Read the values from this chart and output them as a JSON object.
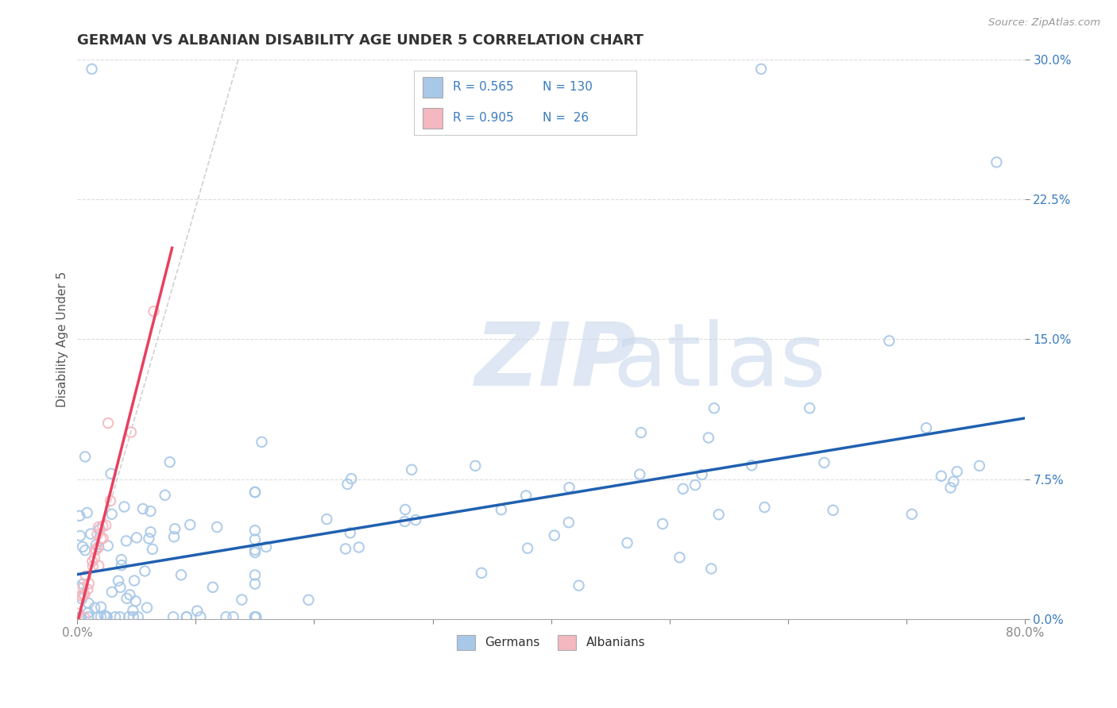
{
  "title": "GERMAN VS ALBANIAN DISABILITY AGE UNDER 5 CORRELATION CHART",
  "source": "Source: ZipAtlas.com",
  "xlabel": "",
  "ylabel": "Disability Age Under 5",
  "xlim": [
    0.0,
    0.8
  ],
  "ylim": [
    0.0,
    0.3
  ],
  "xticks": [
    0.0,
    0.1,
    0.2,
    0.3,
    0.4,
    0.5,
    0.6,
    0.7,
    0.8
  ],
  "xticklabels": [
    "0.0%",
    "",
    "",
    "",
    "",
    "",
    "",
    "",
    "80.0%"
  ],
  "yticks": [
    0.0,
    0.075,
    0.15,
    0.225,
    0.3
  ],
  "yticklabels_right": [
    "0.0%",
    "7.5%",
    "15.0%",
    "22.5%",
    "30.0%"
  ],
  "german_color": "#a8c8e8",
  "albanian_color": "#f4b8c0",
  "german_edge_color": "#7bafd4",
  "albanian_edge_color": "#e8909a",
  "german_line_color": "#2060b0",
  "albanian_line_color": "#e84060",
  "ref_line_color": "#cccccc",
  "watermark_color": "#c8d8ec",
  "title_color": "#333333",
  "tick_color": "#888888",
  "grid_color": "#dddddd",
  "background_color": "#ffffff",
  "legend_text_color": "#3a7bbf",
  "legend_label_color": "#333333"
}
